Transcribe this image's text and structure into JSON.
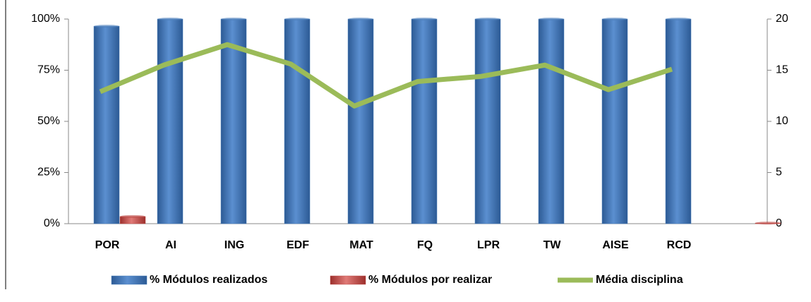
{
  "chart_data": {
    "type": "bar_line",
    "categories": [
      "POR",
      "AI",
      "ING",
      "EDF",
      "MAT",
      "FQ",
      "LPR",
      "TW",
      "AISE",
      "RCD",
      null
    ],
    "series": [
      {
        "name": "% Módulos realizados",
        "color": "#4f81bd",
        "type": "bar",
        "values": [
          96.5,
          100,
          100,
          100,
          100,
          100,
          100,
          100,
          100,
          100,
          null
        ]
      },
      {
        "name": "% Módulos por realizar",
        "color": "#c0504d",
        "type": "bar",
        "values": [
          3.5,
          0,
          0,
          0,
          0,
          0,
          0,
          0,
          0,
          0,
          0.3
        ]
      },
      {
        "name": "Média disciplina",
        "color": "#9bbb59",
        "type": "line",
        "axis": "y2",
        "values": [
          12.9,
          15.5,
          17.5,
          15.6,
          11.5,
          13.9,
          14.4,
          15.5,
          13.1,
          15.1,
          null
        ]
      }
    ],
    "ylim": [
      0,
      100
    ],
    "yticks": [
      {
        "value": 0,
        "label": "0%"
      },
      {
        "value": 25,
        "label": "25%"
      },
      {
        "value": 50,
        "label": "50%"
      },
      {
        "value": 75,
        "label": "75%"
      },
      {
        "value": 100,
        "label": "100%"
      }
    ],
    "y2lim": [
      0,
      20
    ],
    "y2ticks": [
      0,
      5,
      10,
      15,
      20
    ],
    "legend": "bottom"
  }
}
